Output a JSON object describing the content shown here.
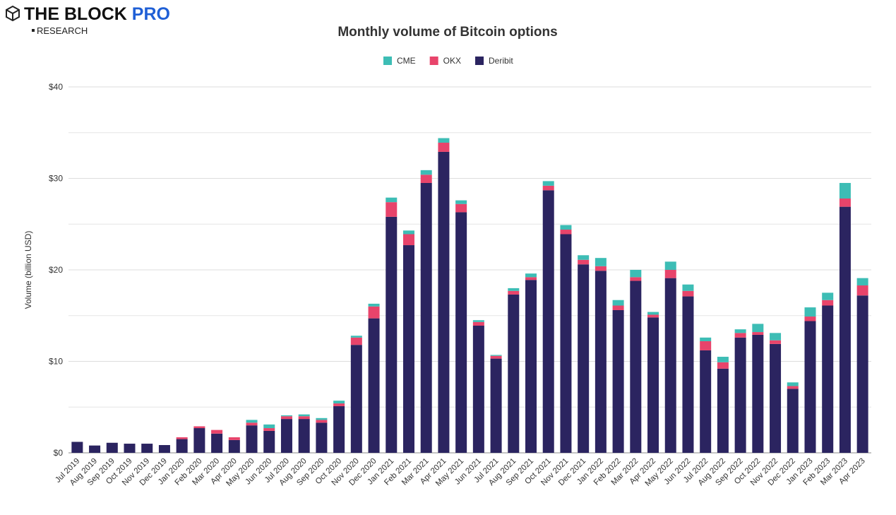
{
  "header": {
    "brand": "THE BLOCK",
    "brand_suffix": "PRO",
    "subbrand": "RESEARCH"
  },
  "chart_data": {
    "type": "stacked_bar",
    "title": "Monthly volume of Bitcoin options",
    "y_label": "Volume (billion USD)",
    "categories": [
      "Jul 2019",
      "Aug 2019",
      "Sep 2019",
      "Oct 2019",
      "Nov 2019",
      "Dec 2019",
      "Jan 2020",
      "Feb 2020",
      "Mar 2020",
      "Apr 2020",
      "May 2020",
      "Jun 2020",
      "Jul 2020",
      "Aug 2020",
      "Sep 2020",
      "Oct 2020",
      "Nov 2020",
      "Dec 2020",
      "Jan 2021",
      "Feb 2021",
      "Mar 2021",
      "Apr 2021",
      "May 2021",
      "Jun 2021",
      "Jul 2021",
      "Aug 2021",
      "Sep 2021",
      "Oct 2021",
      "Nov 2021",
      "Dec 2021",
      "Jan 2022",
      "Feb 2022",
      "Mar 2022",
      "Apr 2022",
      "May 2022",
      "Jun 2022",
      "Jul 2022",
      "Aug 2022",
      "Sep 2022",
      "Oct 2022",
      "Nov 2022",
      "Dec 2022",
      "Jan 2023",
      "Feb 2023",
      "Mar 2023",
      "Apr 2023"
    ],
    "series": [
      {
        "name": "CME",
        "color": "#3dbdb5",
        "values": [
          0,
          0,
          0,
          0,
          0,
          0,
          0,
          0,
          0,
          0,
          0.3,
          0.4,
          0.1,
          0.2,
          0.2,
          0.3,
          0.2,
          0.3,
          0.5,
          0.4,
          0.5,
          0.5,
          0.4,
          0.2,
          0.1,
          0.3,
          0.4,
          0.5,
          0.5,
          0.5,
          0.9,
          0.6,
          0.8,
          0.3,
          0.9,
          0.7,
          0.4,
          0.6,
          0.4,
          0.9,
          0.8,
          0.4,
          1.0,
          0.8,
          1.7,
          0.8
        ]
      },
      {
        "name": "OKX",
        "color": "#e8446b",
        "values": [
          0,
          0,
          0,
          0,
          0,
          0,
          0.2,
          0.2,
          0.4,
          0.3,
          0.3,
          0.3,
          0.3,
          0.3,
          0.3,
          0.3,
          0.8,
          1.3,
          1.6,
          1.2,
          0.9,
          1.0,
          0.9,
          0.4,
          0.3,
          0.4,
          0.3,
          0.5,
          0.5,
          0.5,
          0.5,
          0.5,
          0.4,
          0.3,
          0.9,
          0.6,
          1.0,
          0.7,
          0.5,
          0.3,
          0.4,
          0.3,
          0.5,
          0.6,
          0.9,
          1.1
        ]
      },
      {
        "name": "Deribit",
        "color": "#2b2460",
        "values": [
          1.2,
          0.8,
          1.1,
          1.0,
          1.0,
          0.85,
          1.5,
          2.7,
          2.1,
          1.4,
          3.0,
          2.4,
          3.7,
          3.7,
          3.3,
          5.1,
          11.8,
          14.7,
          25.8,
          22.7,
          29.5,
          32.9,
          26.3,
          13.9,
          10.3,
          17.3,
          18.9,
          28.7,
          23.9,
          20.6,
          19.9,
          15.6,
          18.8,
          14.8,
          19.1,
          17.1,
          11.2,
          9.2,
          12.6,
          12.9,
          11.9,
          7.0,
          14.4,
          16.1,
          26.9,
          17.2
        ]
      }
    ],
    "ylim": [
      0,
      40
    ],
    "yticks": [
      {
        "value": 0,
        "label": "$0"
      },
      {
        "value": 10,
        "label": "$10"
      },
      {
        "value": 20,
        "label": "$20"
      },
      {
        "value": 30,
        "label": "$30"
      },
      {
        "value": 40,
        "label": "$40"
      }
    ],
    "minor_gridlines": [
      5,
      15,
      25,
      35
    ],
    "grid": true,
    "legend": "top"
  }
}
